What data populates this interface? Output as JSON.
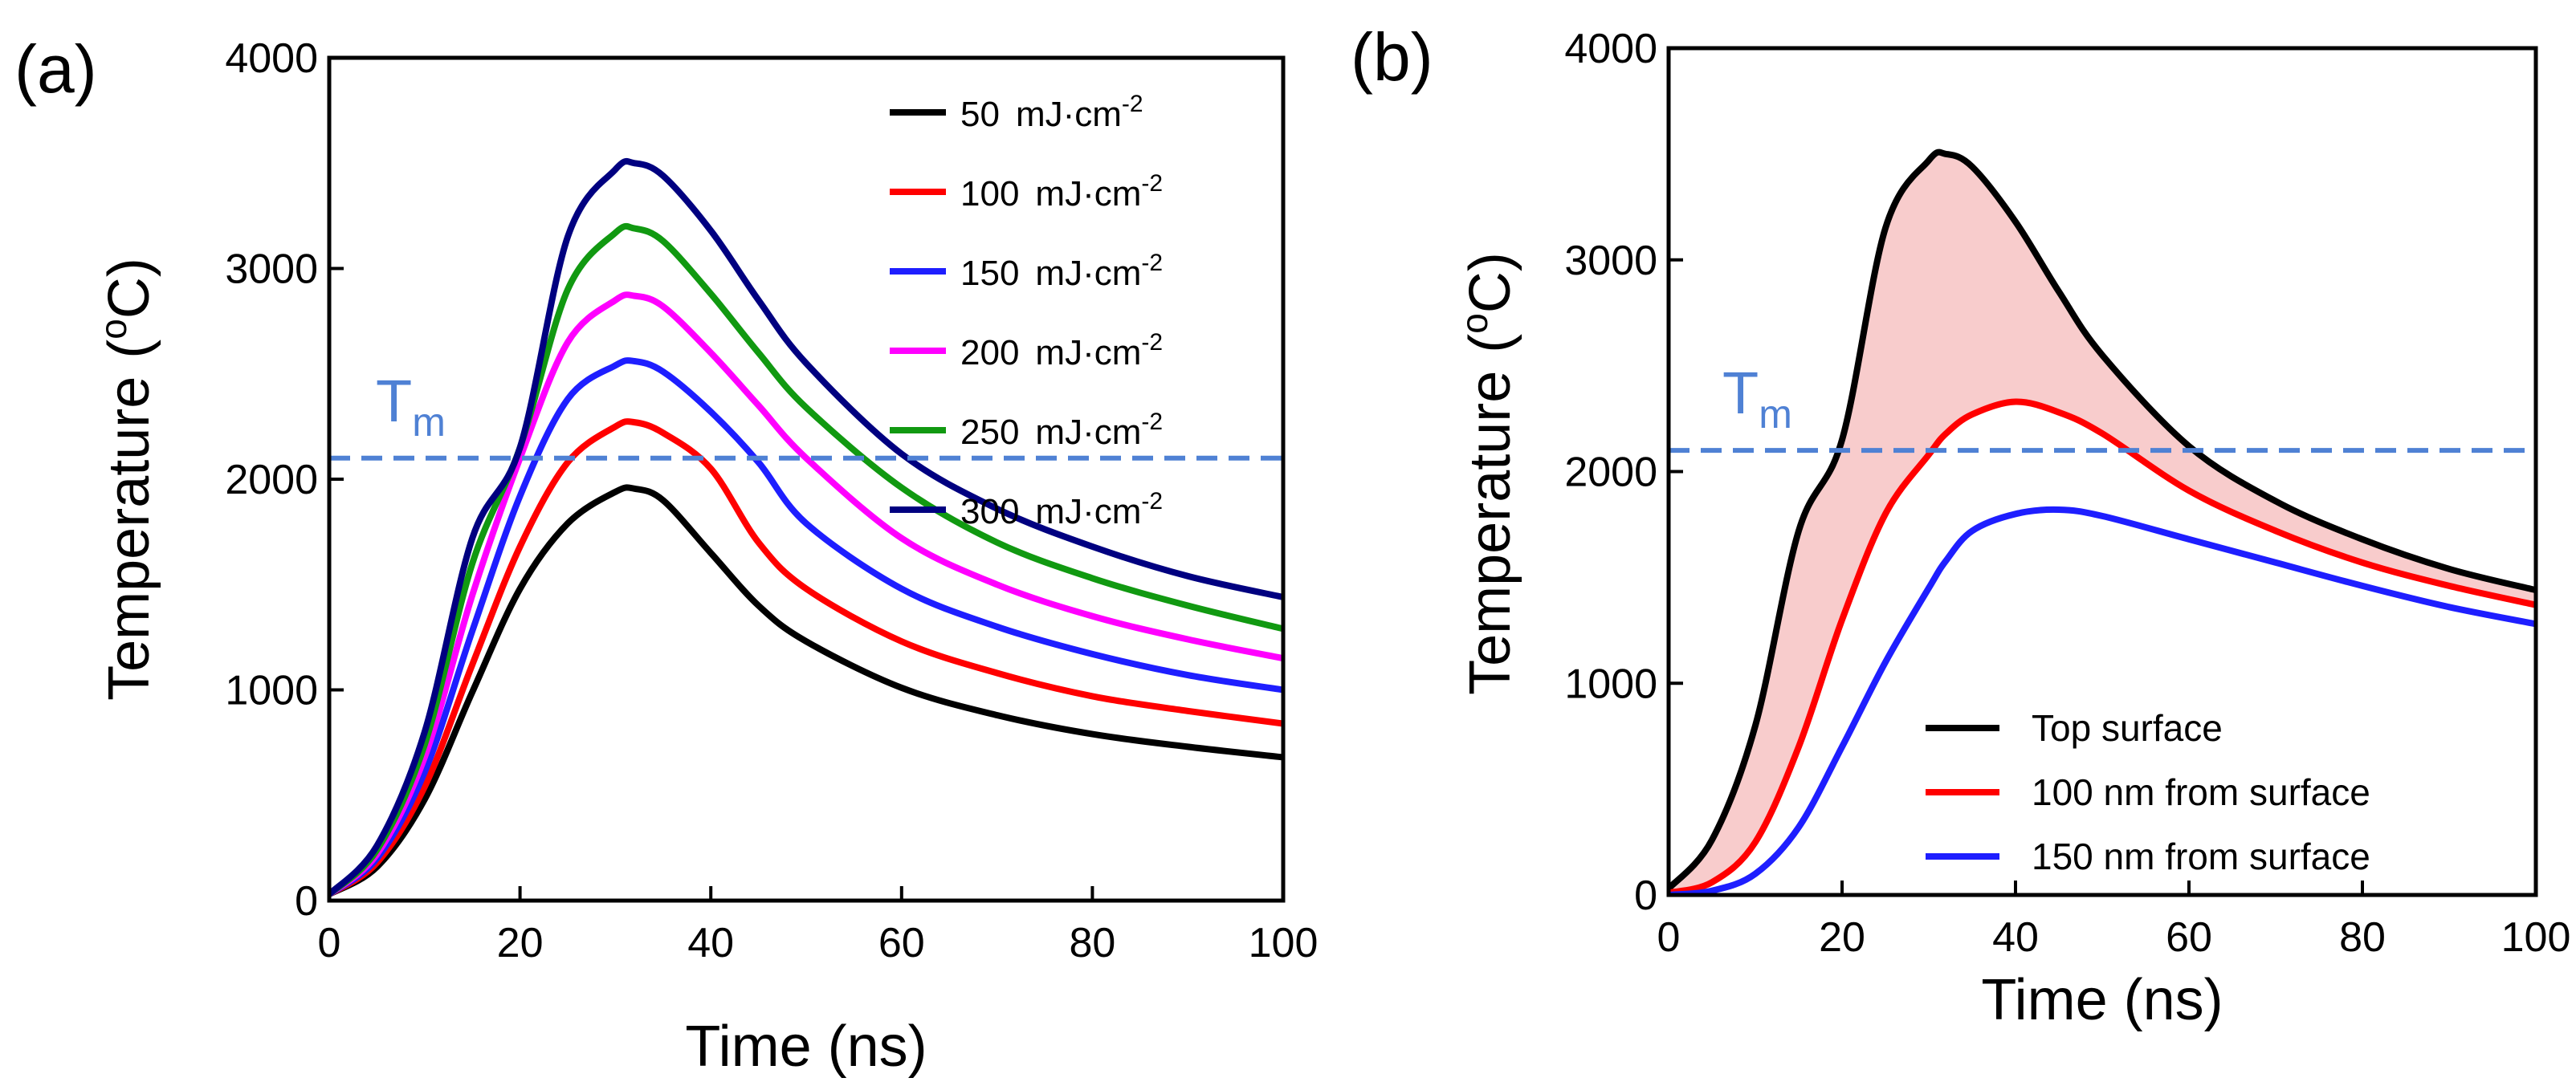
{
  "figure": {
    "tm_label": "T",
    "tm_sub": "m",
    "tm_value": 2100,
    "tm_color": "#4f81d4"
  },
  "chart_data": [
    {
      "type": "line",
      "panel_label": "(a)",
      "xlabel": "Time (ns)",
      "ylabel": "Temperature",
      "ylabel_unit_pre": "(",
      "ylabel_unit_sup": "o",
      "ylabel_unit_post": "C)",
      "xlim": [
        0,
        100
      ],
      "ylim": [
        0,
        4000
      ],
      "xticks": [
        "0",
        "20",
        "40",
        "60",
        "80",
        "100"
      ],
      "xtick_values": [
        0,
        20,
        40,
        60,
        80,
        100
      ],
      "yticks": [
        "0",
        "1000",
        "2000",
        "3000",
        "4000"
      ],
      "ytick_values": [
        0,
        1000,
        2000,
        3000,
        4000
      ],
      "legend_position": "top-right",
      "x": [
        0,
        5,
        10,
        15,
        20,
        25,
        30,
        32,
        35,
        40,
        45,
        50,
        60,
        70,
        80,
        90,
        100
      ],
      "series": [
        {
          "name": "50",
          "unit": "mJ·cm",
          "exp": "-2",
          "color": "#000000",
          "values": [
            30,
            160,
            480,
            990,
            1480,
            1790,
            1940,
            1955,
            1900,
            1650,
            1400,
            1230,
            1010,
            880,
            790,
            730,
            680
          ]
        },
        {
          "name": "100",
          "unit": "mJ·cm",
          "exp": "-2",
          "color": "#ff0000",
          "values": [
            30,
            180,
            540,
            1120,
            1680,
            2080,
            2250,
            2270,
            2220,
            2050,
            1700,
            1480,
            1230,
            1080,
            970,
            900,
            840
          ]
        },
        {
          "name": "150",
          "unit": "mJ·cm",
          "exp": "-2",
          "color": "#1e1eff",
          "values": [
            30,
            200,
            610,
            1280,
            1920,
            2380,
            2540,
            2560,
            2510,
            2320,
            2080,
            1790,
            1480,
            1300,
            1170,
            1070,
            1000
          ]
        },
        {
          "name": "200",
          "unit": "mJ·cm",
          "exp": "-2",
          "color": "#ff00ff",
          "values": [
            30,
            220,
            680,
            1450,
            2100,
            2650,
            2850,
            2870,
            2820,
            2600,
            2350,
            2100,
            1720,
            1500,
            1350,
            1240,
            1150
          ]
        },
        {
          "name": "250",
          "unit": "mJ·cm",
          "exp": "-2",
          "color": "#119911",
          "values": [
            30,
            240,
            740,
            1600,
            2150,
            2900,
            3170,
            3190,
            3130,
            2880,
            2600,
            2340,
            1960,
            1700,
            1530,
            1400,
            1290
          ]
        },
        {
          "name": "300",
          "unit": "mJ·cm",
          "exp": "-2",
          "color": "#000080",
          "values": [
            30,
            260,
            800,
            1720,
            2150,
            3150,
            3470,
            3500,
            3440,
            3180,
            2850,
            2550,
            2120,
            1860,
            1680,
            1540,
            1440
          ]
        }
      ]
    },
    {
      "type": "line",
      "panel_label": "(b)",
      "xlabel": "Time (ns)",
      "ylabel": "Temperature",
      "ylabel_unit_pre": "(",
      "ylabel_unit_sup": "o",
      "ylabel_unit_post": "C)",
      "xlim": [
        0,
        100
      ],
      "ylim": [
        0,
        4000
      ],
      "xticks": [
        "0",
        "20",
        "40",
        "60",
        "80",
        "100"
      ],
      "xtick_values": [
        0,
        20,
        40,
        60,
        80,
        100
      ],
      "yticks": [
        "0",
        "1000",
        "2000",
        "3000",
        "4000"
      ],
      "ytick_values": [
        0,
        1000,
        2000,
        3000,
        4000
      ],
      "legend_position": "bottom-right",
      "shaded_between": [
        "Top surface",
        "100 nm from surface"
      ],
      "shade_color": "#f8cccc",
      "x": [
        0,
        5,
        10,
        15,
        20,
        25,
        30,
        32,
        35,
        40,
        45,
        50,
        60,
        70,
        80,
        90,
        100
      ],
      "series": [
        {
          "name": "Top surface",
          "color": "#000000",
          "values": [
            30,
            260,
            800,
            1720,
            2150,
            3150,
            3470,
            3500,
            3440,
            3180,
            2850,
            2550,
            2120,
            1860,
            1680,
            1540,
            1440
          ]
        },
        {
          "name": "100 nm from surface",
          "color": "#ff0000",
          "values": [
            10,
            60,
            250,
            700,
            1300,
            1800,
            2080,
            2180,
            2270,
            2330,
            2280,
            2180,
            1910,
            1720,
            1570,
            1460,
            1370
          ]
        },
        {
          "name": "150 nm from surface",
          "color": "#1e1eff",
          "values": [
            0,
            20,
            100,
            320,
            700,
            1100,
            1450,
            1580,
            1720,
            1800,
            1820,
            1790,
            1680,
            1570,
            1460,
            1360,
            1280
          ]
        }
      ]
    }
  ]
}
